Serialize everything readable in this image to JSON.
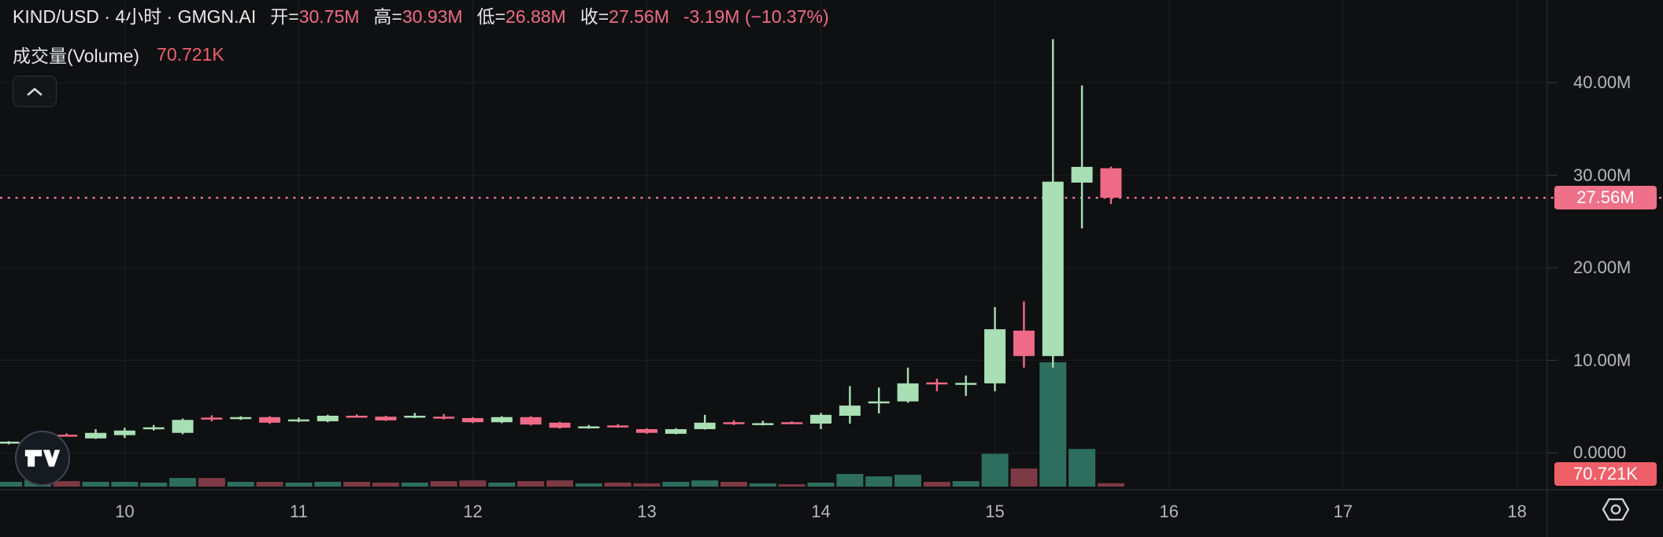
{
  "header": {
    "symbol": "KIND/USD · 4小时 · GMGN.AI",
    "fields": [
      {
        "label": "开=",
        "value": "30.75M"
      },
      {
        "label": "高=",
        "value": "30.93M"
      },
      {
        "label": "低=",
        "value": "26.88M"
      },
      {
        "label": "收=",
        "value": "27.56M"
      }
    ],
    "change": "-3.19M (−10.37%)",
    "volume_label": "成交量(Volume)",
    "volume_value": "70.721K"
  },
  "y_axis": {
    "ticks": [
      {
        "label": "40.00M",
        "value": 40
      },
      {
        "label": "30.00M",
        "value": 30
      },
      {
        "label": "20.00M",
        "value": 20
      },
      {
        "label": "10.00M",
        "value": 10
      },
      {
        "label": "0.0000",
        "value": 0
      }
    ],
    "price_badge": {
      "label": "27.56M",
      "value": 27.56
    },
    "volume_badge": {
      "label": "70.721K",
      "value": 70.721
    }
  },
  "x_axis": {
    "ticks": [
      {
        "label": "10",
        "slot": 4
      },
      {
        "label": "11",
        "slot": 10
      },
      {
        "label": "12",
        "slot": 16
      },
      {
        "label": "13",
        "slot": 22
      },
      {
        "label": "14",
        "slot": 28
      },
      {
        "label": "15",
        "slot": 34
      },
      {
        "label": "16",
        "slot": 40
      },
      {
        "label": "17",
        "slot": 46
      },
      {
        "label": "18",
        "slot": 52
      }
    ]
  },
  "colors": {
    "background": "#0f1012",
    "up": "#a8dfb4",
    "down": "#ef6a87",
    "vol_up": "#2d6e5e",
    "vol_down": "#7d3a44",
    "grid": "rgba(255,255,255,0.06)",
    "separator": "#24272b",
    "axis_text": "#b4b8bf",
    "price_line": "#f07ca0",
    "price_badge_bg": "#ee7189",
    "volume_badge_bg": "#ef5f68"
  },
  "chart_data": {
    "type": "candlestick",
    "symbol": "KIND/USD",
    "interval": "4小时",
    "source": "GMGN.AI",
    "price_unit": "M",
    "volume_unit": "K",
    "ylim": [
      0,
      48.9
    ],
    "grid": true,
    "last_ohlc": {
      "open": "30.75M",
      "high": "30.93M",
      "low": "26.88M",
      "close": "27.56M",
      "change": "-3.19M (−10.37%)"
    },
    "price_line": {
      "value": 27.56,
      "label": "27.56M",
      "style": "dotted"
    },
    "last_volume": 70.721,
    "day_ticks": [
      "10",
      "11",
      "12",
      "13",
      "14",
      "15",
      "16",
      "17",
      "18"
    ],
    "candles": [
      {
        "o": 1.0,
        "h": 1.25,
        "l": 0.9,
        "c": 1.2,
        "v": 100
      },
      {
        "o": 1.2,
        "h": 2.0,
        "l": 1.1,
        "c": 1.9,
        "v": 130
      },
      {
        "o": 1.95,
        "h": 2.1,
        "l": 1.75,
        "c": 1.85,
        "v": 115
      },
      {
        "o": 1.55,
        "h": 2.55,
        "l": 1.5,
        "c": 2.15,
        "v": 100
      },
      {
        "o": 1.9,
        "h": 2.7,
        "l": 1.6,
        "c": 2.4,
        "v": 100
      },
      {
        "o": 2.6,
        "h": 3.0,
        "l": 2.4,
        "c": 2.75,
        "v": 85
      },
      {
        "o": 2.15,
        "h": 3.7,
        "l": 2.0,
        "c": 3.55,
        "v": 180
      },
      {
        "o": 3.8,
        "h": 4.05,
        "l": 3.4,
        "c": 3.7,
        "v": 180
      },
      {
        "o": 3.7,
        "h": 3.95,
        "l": 3.55,
        "c": 3.85,
        "v": 100
      },
      {
        "o": 3.85,
        "h": 3.95,
        "l": 3.1,
        "c": 3.25,
        "v": 100
      },
      {
        "o": 3.5,
        "h": 3.8,
        "l": 3.3,
        "c": 3.6,
        "v": 85
      },
      {
        "o": 3.4,
        "h": 4.1,
        "l": 3.3,
        "c": 4.0,
        "v": 100
      },
      {
        "o": 4.0,
        "h": 4.15,
        "l": 3.8,
        "c": 3.9,
        "v": 100
      },
      {
        "o": 3.9,
        "h": 4.0,
        "l": 3.45,
        "c": 3.5,
        "v": 85
      },
      {
        "o": 3.9,
        "h": 4.3,
        "l": 3.75,
        "c": 4.0,
        "v": 85
      },
      {
        "o": 3.9,
        "h": 4.2,
        "l": 3.6,
        "c": 3.8,
        "v": 115
      },
      {
        "o": 3.75,
        "h": 3.85,
        "l": 3.2,
        "c": 3.3,
        "v": 130
      },
      {
        "o": 3.3,
        "h": 3.95,
        "l": 3.2,
        "c": 3.85,
        "v": 85
      },
      {
        "o": 3.85,
        "h": 3.95,
        "l": 2.95,
        "c": 3.05,
        "v": 115
      },
      {
        "o": 3.25,
        "h": 3.35,
        "l": 2.6,
        "c": 2.7,
        "v": 130
      },
      {
        "o": 2.75,
        "h": 3.0,
        "l": 2.6,
        "c": 2.85,
        "v": 70
      },
      {
        "o": 2.95,
        "h": 3.1,
        "l": 2.7,
        "c": 2.85,
        "v": 85
      },
      {
        "o": 2.55,
        "h": 2.65,
        "l": 2.05,
        "c": 2.15,
        "v": 70
      },
      {
        "o": 2.05,
        "h": 2.65,
        "l": 2.0,
        "c": 2.55,
        "v": 100
      },
      {
        "o": 2.55,
        "h": 4.1,
        "l": 2.5,
        "c": 3.25,
        "v": 130
      },
      {
        "o": 3.3,
        "h": 3.5,
        "l": 3.0,
        "c": 3.2,
        "v": 100
      },
      {
        "o": 3.1,
        "h": 3.45,
        "l": 2.95,
        "c": 3.2,
        "v": 70
      },
      {
        "o": 3.3,
        "h": 3.4,
        "l": 3.1,
        "c": 3.2,
        "v": 50
      },
      {
        "o": 3.15,
        "h": 4.3,
        "l": 2.55,
        "c": 4.1,
        "v": 85
      },
      {
        "o": 4.0,
        "h": 7.2,
        "l": 3.15,
        "c": 5.1,
        "v": 265
      },
      {
        "o": 5.35,
        "h": 7.05,
        "l": 4.25,
        "c": 5.55,
        "v": 215
      },
      {
        "o": 5.55,
        "h": 9.2,
        "l": 5.4,
        "c": 7.5,
        "v": 250
      },
      {
        "o": 7.6,
        "h": 8.0,
        "l": 6.65,
        "c": 7.5,
        "v": 100
      },
      {
        "o": 7.4,
        "h": 8.35,
        "l": 6.15,
        "c": 7.55,
        "v": 115
      },
      {
        "o": 7.5,
        "h": 15.75,
        "l": 6.65,
        "c": 13.35,
        "v": 690
      },
      {
        "o": 13.2,
        "h": 16.35,
        "l": 9.2,
        "c": 10.45,
        "v": 380
      },
      {
        "o": 10.45,
        "h": 44.7,
        "l": 9.2,
        "c": 29.3,
        "v": 2610
      },
      {
        "o": 29.2,
        "h": 39.7,
        "l": 24.25,
        "c": 30.9,
        "v": 790
      },
      {
        "o": 30.75,
        "h": 30.93,
        "l": 26.88,
        "c": 27.56,
        "v": 70.721
      }
    ]
  }
}
